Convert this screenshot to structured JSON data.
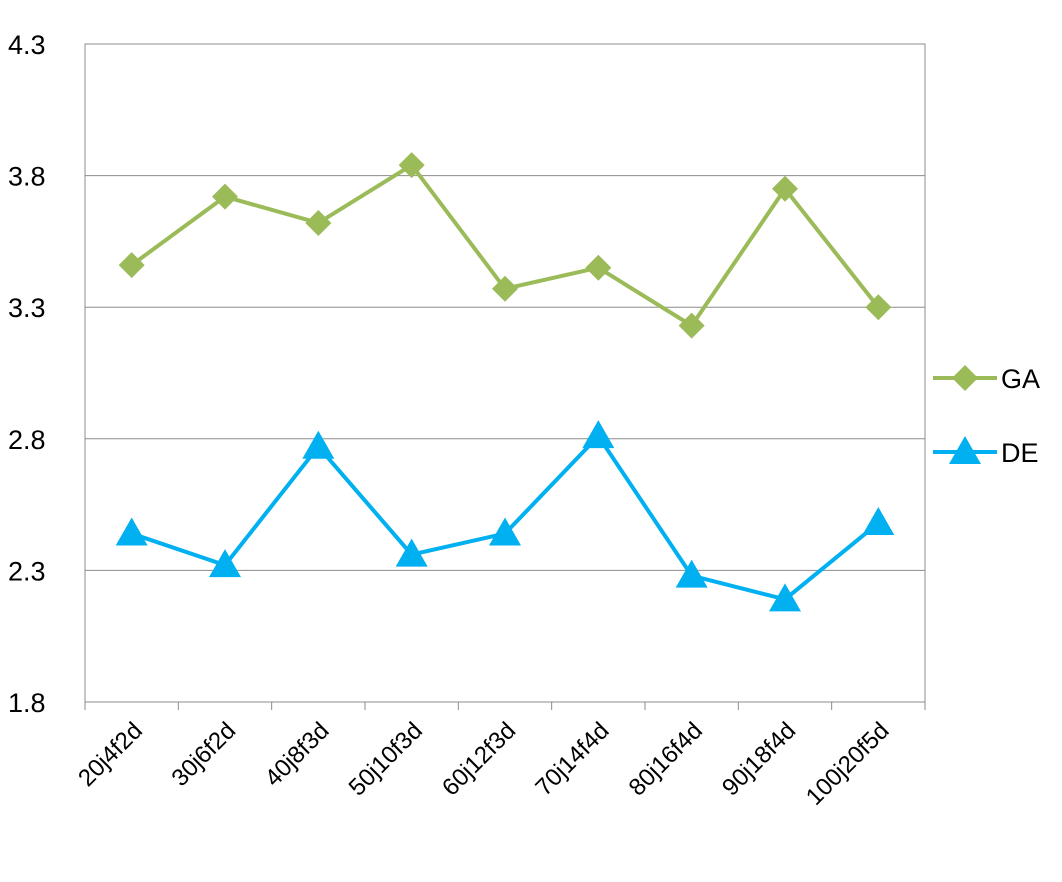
{
  "chart_data": {
    "type": "line",
    "categories": [
      "20j4f2d",
      "30j6f2d",
      "40j8f3d",
      "50j10f3d",
      "60j12f3d",
      "70j14f4d",
      "80j16f4d",
      "90j18f4d",
      "100j20f5d"
    ],
    "series": [
      {
        "name": "GA",
        "color": "#9BBB59",
        "marker": "diamond",
        "values": [
          3.46,
          3.72,
          3.62,
          3.84,
          3.37,
          3.45,
          3.23,
          3.75,
          3.3
        ]
      },
      {
        "name": "DE",
        "color": "#00B0F0",
        "marker": "triangle",
        "values": [
          2.44,
          2.32,
          2.77,
          2.36,
          2.44,
          2.81,
          2.28,
          2.19,
          2.48
        ]
      }
    ],
    "ylim": [
      1.8,
      4.3
    ],
    "yticks": [
      "1.8",
      "2.3",
      "2.8",
      "3.3",
      "3.8",
      "4.3"
    ],
    "grid": true,
    "legend_position": "right"
  }
}
